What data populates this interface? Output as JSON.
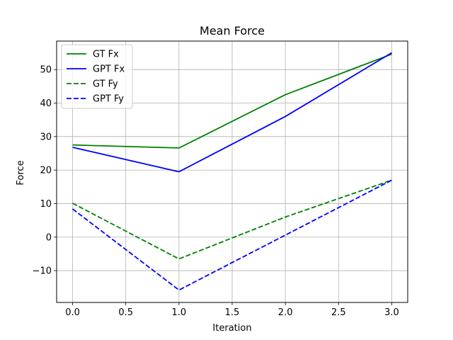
{
  "chart_data": {
    "type": "line",
    "title": "Mean Force",
    "xlabel": "Iteration",
    "ylabel": "Force",
    "x": [
      0,
      1,
      2,
      3
    ],
    "xlim": [
      -0.15,
      3.15
    ],
    "ylim": [
      -19.5,
      58.5
    ],
    "xticks": [
      0.0,
      0.5,
      1.0,
      1.5,
      2.0,
      2.5,
      3.0
    ],
    "xtick_labels": [
      "0.0",
      "0.5",
      "1.0",
      "1.5",
      "2.0",
      "2.5",
      "3.0"
    ],
    "yticks": [
      -10,
      0,
      10,
      20,
      30,
      40,
      50
    ],
    "ytick_labels": [
      "−10",
      "0",
      "10",
      "20",
      "30",
      "40",
      "50"
    ],
    "grid": true,
    "legend_position": "top-left",
    "series": [
      {
        "name": "GT Fx",
        "values": [
          27.5,
          26.6,
          42.5,
          54.6
        ],
        "color": "#008000",
        "style": "solid"
      },
      {
        "name": "GPT Fx",
        "values": [
          26.8,
          19.5,
          36.0,
          55.0
        ],
        "color": "#0000ff",
        "style": "solid"
      },
      {
        "name": "GT Fy",
        "values": [
          10.1,
          -6.5,
          6.0,
          17.0
        ],
        "color": "#008000",
        "style": "dashed"
      },
      {
        "name": "GPT Fy",
        "values": [
          8.4,
          -15.8,
          0.6,
          17.0
        ],
        "color": "#0000ff",
        "style": "dashed"
      }
    ]
  }
}
